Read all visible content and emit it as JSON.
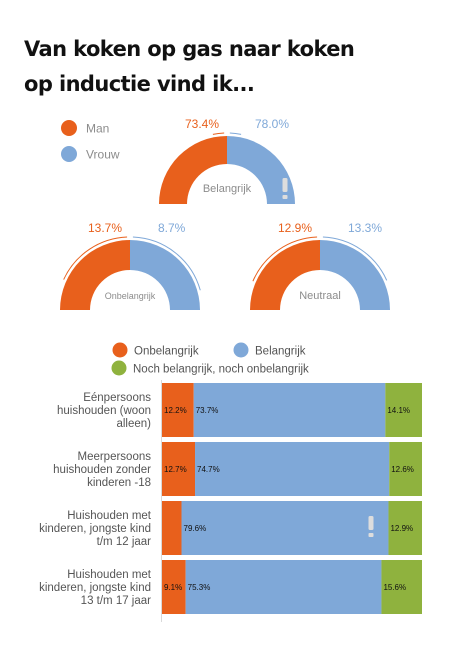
{
  "title": {
    "line1": "Van koken op gas naar koken",
    "line2": "op inductie vind ik..."
  },
  "colors": {
    "orange": "#E8601C",
    "blue": "#7FA8D8",
    "green": "#8FB23E",
    "label_gray": "#8c8c8c",
    "alert": "#dddddd"
  },
  "gauge_legend": [
    {
      "label": "Man",
      "color": "#E8601C"
    },
    {
      "label": "Vrouw",
      "color": "#7FA8D8"
    }
  ],
  "bar_legend": [
    {
      "label": "Onbelangrijk",
      "color": "#E8601C"
    },
    {
      "label": "Belangrijk",
      "color": "#7FA8D8"
    },
    {
      "label": "Noch belangrijk, noch onbelangrijk",
      "color": "#8FB23E"
    }
  ],
  "alert_icon": "exclamation-icon",
  "chart_data": [
    {
      "type": "pie",
      "subtype": "half-donut-gauge",
      "title": "Belangrijk",
      "series": [
        {
          "name": "Man",
          "value": 73.4,
          "label": "73.4%"
        },
        {
          "name": "Vrouw",
          "value": 78.0,
          "label": "78.0%"
        }
      ],
      "alert": true
    },
    {
      "type": "pie",
      "subtype": "half-donut-gauge",
      "title": "Onbelangrijk",
      "series": [
        {
          "name": "Man",
          "value": 13.7,
          "label": "13.7%"
        },
        {
          "name": "Vrouw",
          "value": 8.7,
          "label": "8.7%"
        }
      ],
      "alert": false
    },
    {
      "type": "pie",
      "subtype": "half-donut-gauge",
      "title": "Neutraal",
      "series": [
        {
          "name": "Man",
          "value": 12.9,
          "label": "12.9%"
        },
        {
          "name": "Vrouw",
          "value": 13.3,
          "label": "13.3%"
        }
      ],
      "alert": false
    },
    {
      "type": "bar",
      "orientation": "horizontal",
      "stacked": true,
      "xlim": [
        0,
        100
      ],
      "categories": [
        "Eénpersoons huishouden (woon alleen)",
        "Meerpersoons huishouden zonder kinderen -18",
        "Huishouden met kinderen, jongste kind t/m 12 jaar",
        "Huishouden met kinderen, jongste kind 13 t/m 17 jaar"
      ],
      "category_lines": [
        [
          "Eénpersoons",
          "huishouden (woon",
          "alleen)"
        ],
        [
          "Meerpersoons",
          "huishouden zonder",
          "kinderen -18"
        ],
        [
          "Huishouden met",
          "kinderen, jongste kind",
          "t/m 12 jaar"
        ],
        [
          "Huishouden met",
          "kinderen, jongste kind",
          "13 t/m 17 jaar"
        ]
      ],
      "series": [
        {
          "name": "Onbelangrijk",
          "values": [
            12.2,
            12.7,
            7.5,
            9.1
          ],
          "labels": [
            "12.2%",
            "12.7%",
            "",
            "9.1%"
          ]
        },
        {
          "name": "Belangrijk",
          "values": [
            73.7,
            74.7,
            79.6,
            75.3
          ],
          "labels": [
            "73.7%",
            "74.7%",
            "79.6%",
            "75.3%"
          ]
        },
        {
          "name": "Noch belangrijk, noch onbelangrijk",
          "values": [
            14.1,
            12.6,
            12.9,
            15.6
          ],
          "labels": [
            "14.1%",
            "12.6%",
            "12.9%",
            "15.6%"
          ]
        }
      ],
      "alert_row": 2
    }
  ]
}
